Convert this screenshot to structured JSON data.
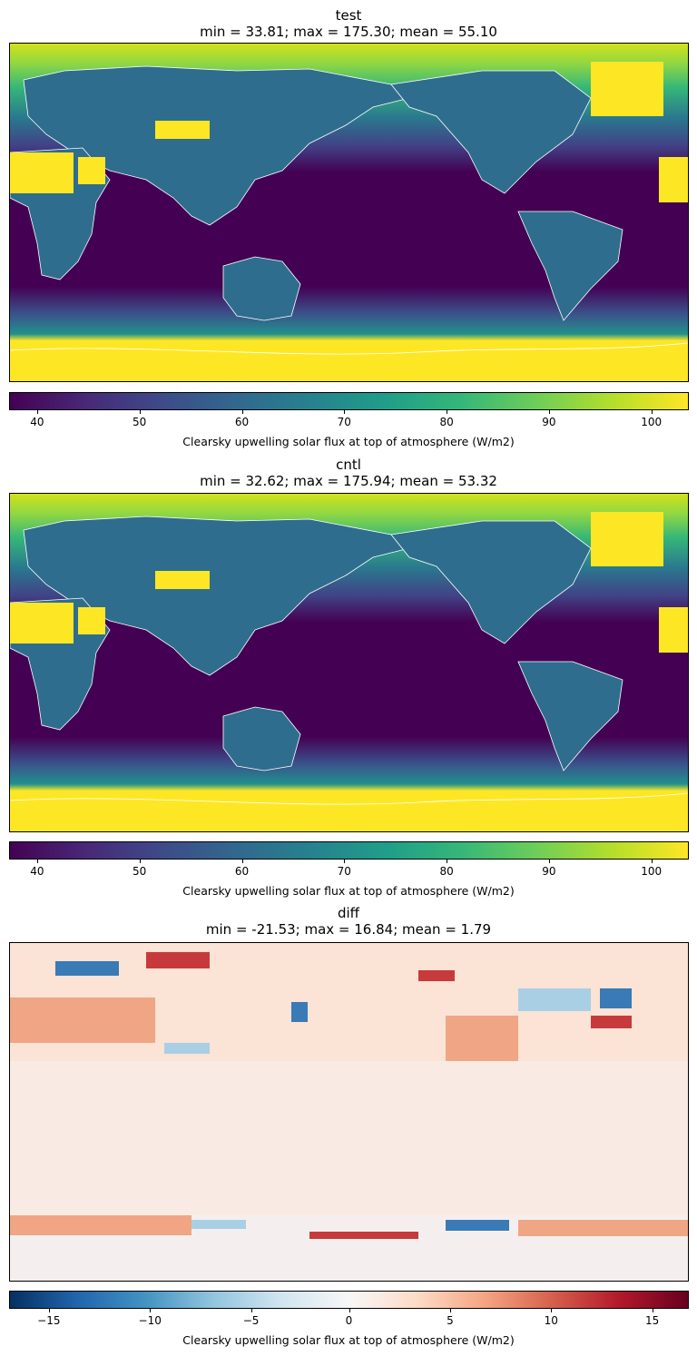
{
  "panels": [
    {
      "name": "test",
      "stats": "min = 33.81; max = 175.30; mean = 55.10",
      "colormap": "viridis",
      "colorbar": {
        "range": [
          37.3,
          103.7
        ],
        "ticks": [
          "40",
          "50",
          "60",
          "70",
          "80",
          "90",
          "100"
        ],
        "label": "Clearsky upwelling solar flux at top of atmosphere (W/m2)"
      }
    },
    {
      "name": "cntl",
      "stats": "min = 32.62; max = 175.94; mean = 53.32",
      "colormap": "viridis",
      "colorbar": {
        "range": [
          37.3,
          103.7
        ],
        "ticks": [
          "40",
          "50",
          "60",
          "70",
          "80",
          "90",
          "100"
        ],
        "label": "Clearsky upwelling solar flux at top of atmosphere (W/m2)"
      }
    },
    {
      "name": "diff",
      "stats": "min = -21.53; max = 16.84; mean = 1.79",
      "colormap": "RdBu_r",
      "colorbar": {
        "range": [
          -16.8,
          16.8
        ],
        "ticks": [
          "−15",
          "−10",
          "−5",
          "0",
          "5",
          "10",
          "15"
        ],
        "label": "Clearsky upwelling solar flux at top of atmosphere (W/m2)"
      }
    }
  ],
  "map": {
    "projection": "PlateCarree",
    "central_longitude": 180,
    "coastline_color": "#ffffff"
  }
}
